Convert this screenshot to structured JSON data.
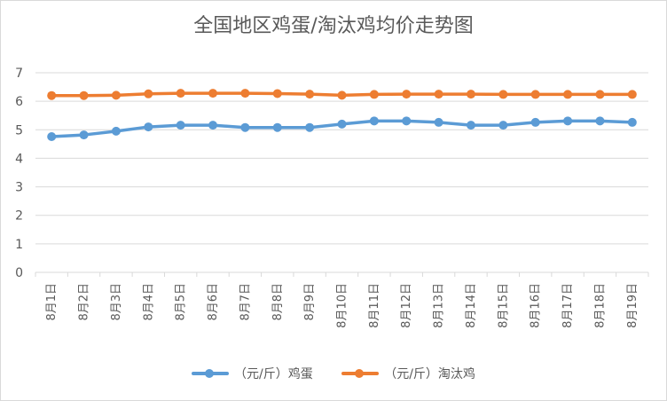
{
  "chart_data": {
    "type": "line",
    "title": "全国地区鸡蛋/淘汰鸡均价走势图",
    "categories": [
      "8月1日",
      "8月2日",
      "8月3日",
      "8月4日",
      "8月5日",
      "8月6日",
      "8月7日",
      "8月8日",
      "8月9日",
      "8月10日",
      "8月11日",
      "8月12日",
      "8月13日",
      "8月14日",
      "8月15日",
      "8月16日",
      "8月17日",
      "8月18日",
      "8月19日"
    ],
    "series": [
      {
        "name": "（元/斤）鸡蛋",
        "color": "#5b9bd5",
        "values": [
          4.76,
          4.82,
          4.95,
          5.1,
          5.16,
          5.16,
          5.08,
          5.08,
          5.08,
          5.2,
          5.31,
          5.31,
          5.26,
          5.16,
          5.16,
          5.26,
          5.31,
          5.31,
          5.26
        ]
      },
      {
        "name": "（元/斤）淘汰鸡",
        "color": "#ed7d31",
        "values": [
          6.2,
          6.2,
          6.21,
          6.26,
          6.28,
          6.28,
          6.28,
          6.27,
          6.25,
          6.21,
          6.24,
          6.25,
          6.25,
          6.25,
          6.24,
          6.24,
          6.24,
          6.24,
          6.24
        ]
      }
    ],
    "ylim": [
      0,
      7
    ],
    "yticks": [
      0,
      1,
      2,
      3,
      4,
      5,
      6,
      7
    ],
    "grid": true,
    "legend_position": "bottom"
  }
}
